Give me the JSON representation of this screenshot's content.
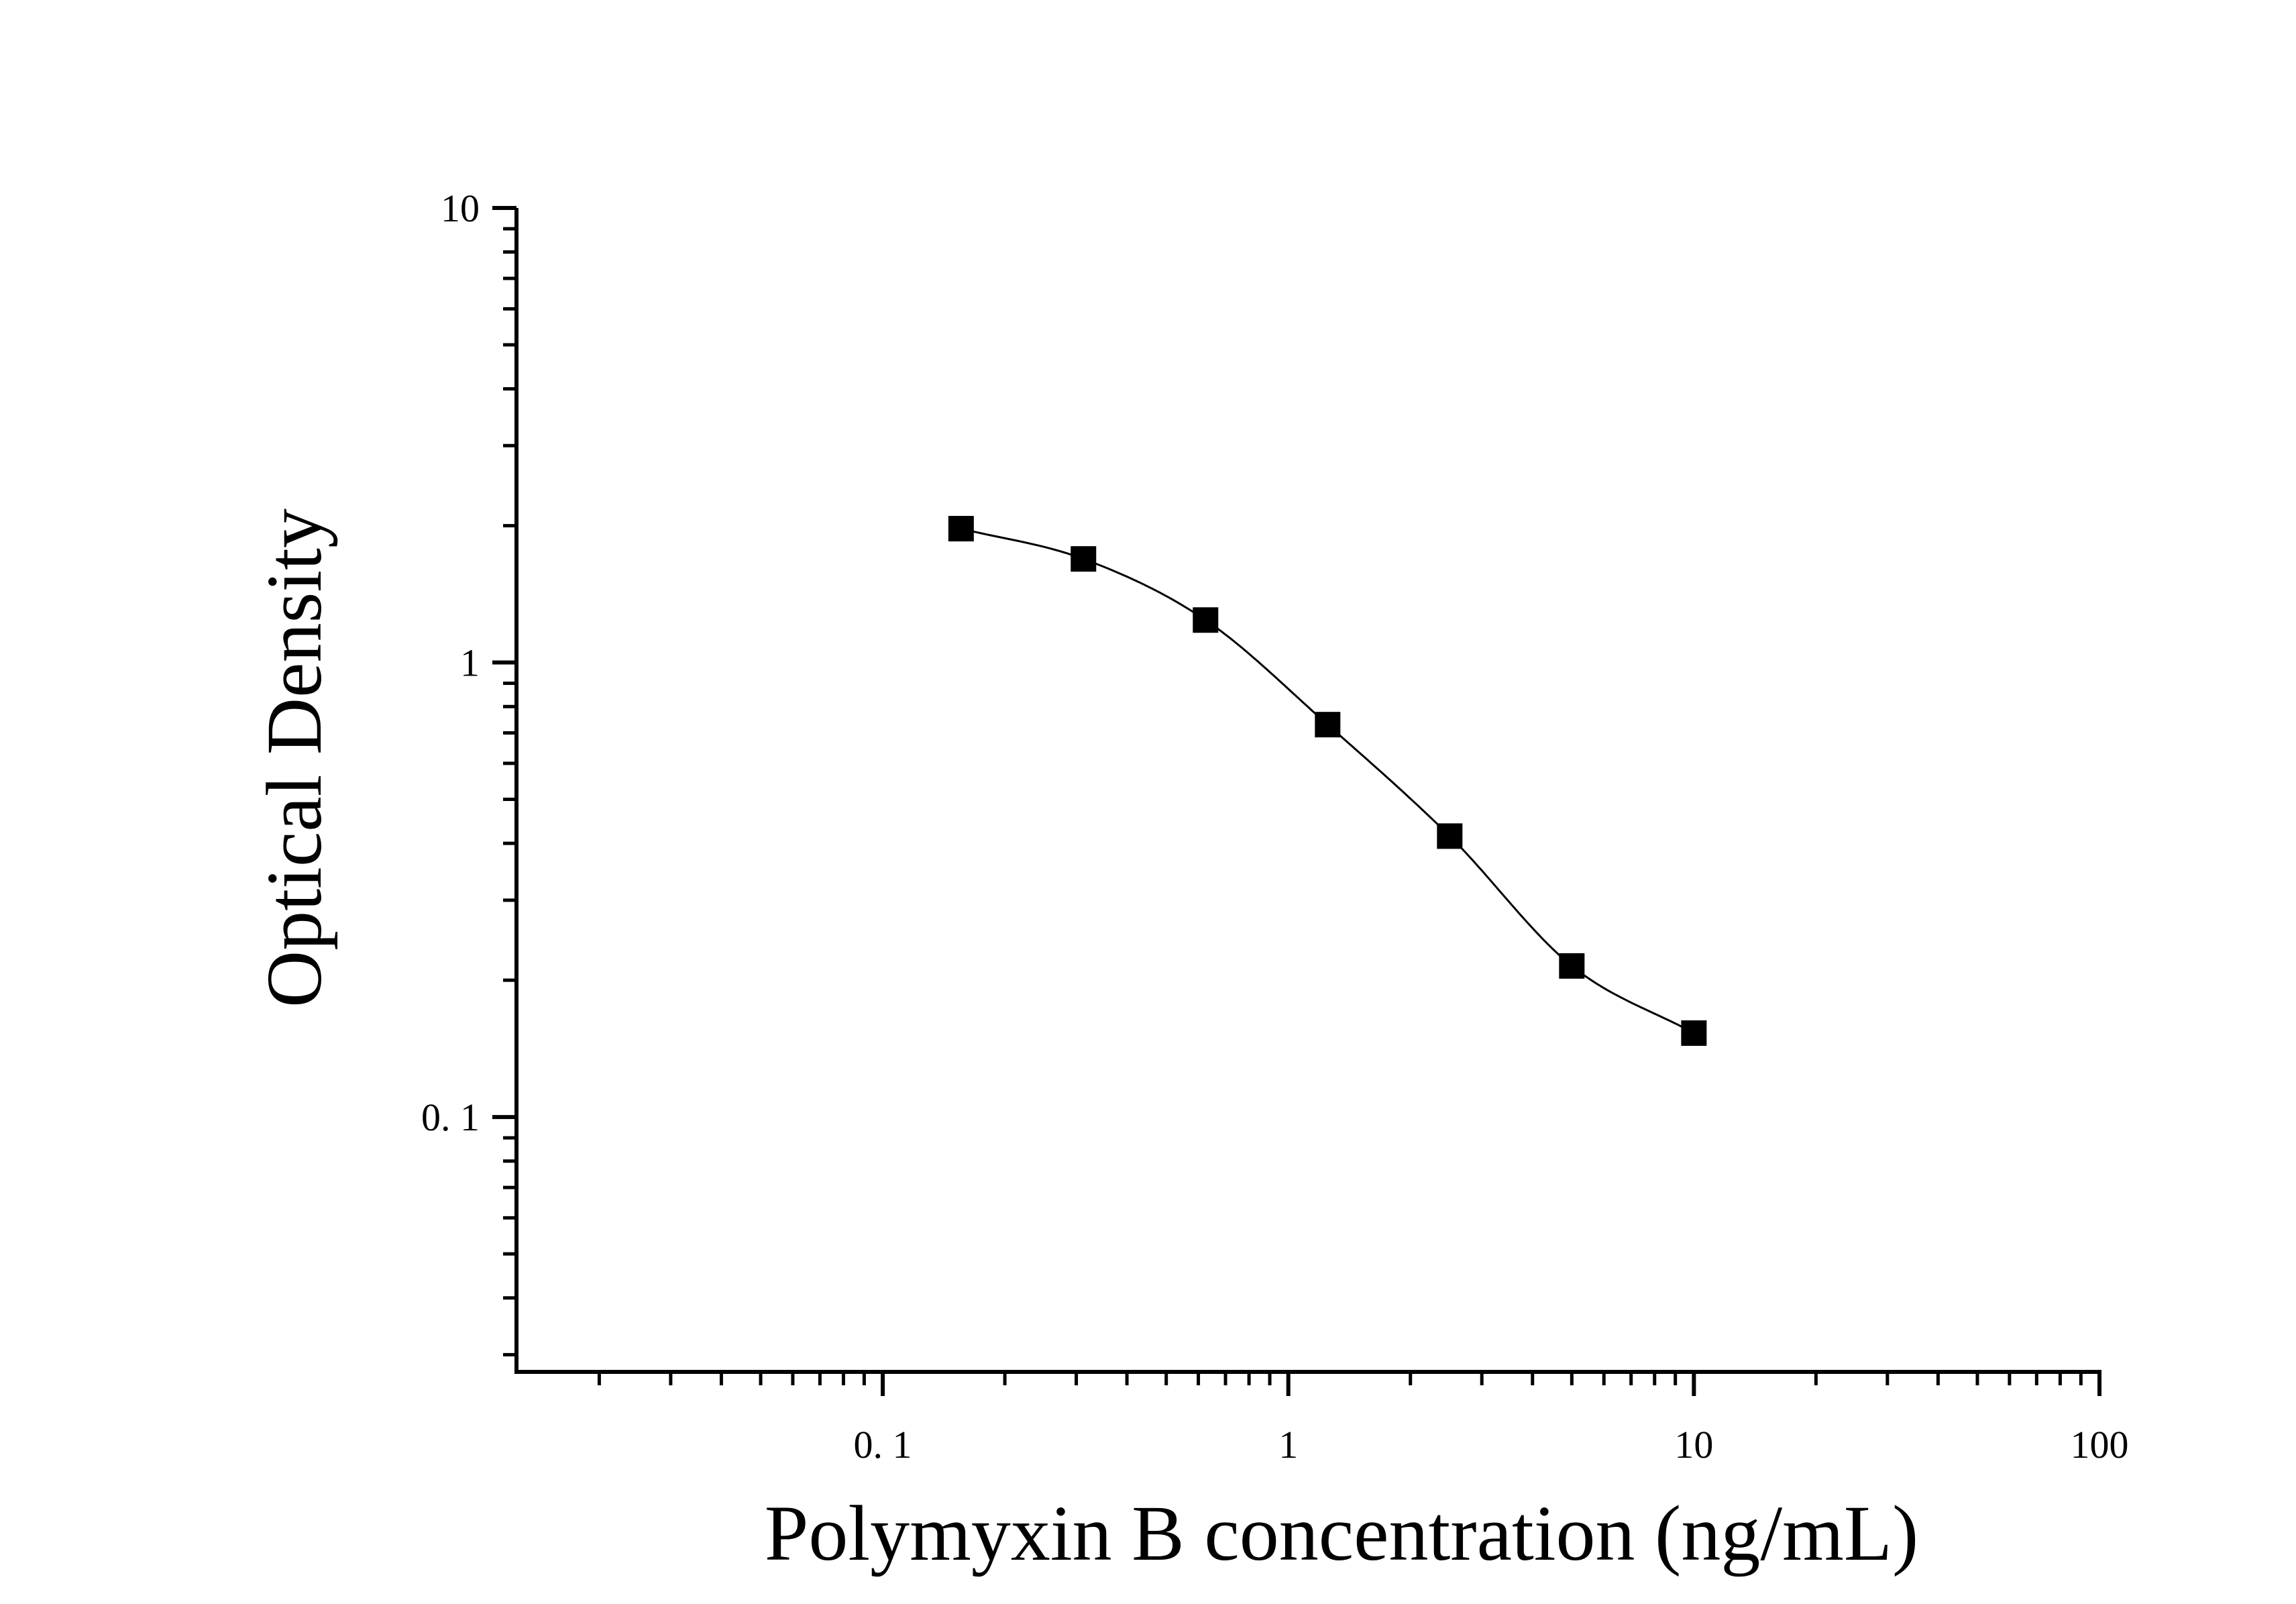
{
  "chart_data": {
    "type": "scatter",
    "title": "",
    "xlabel": "Polymyxin B concentration (ng/mL)",
    "ylabel": "Optical Density",
    "x_scale": "log",
    "y_scale": "log",
    "xlim": [
      0.0125,
      100
    ],
    "ylim": [
      0.0275,
      10
    ],
    "x_ticks": [
      {
        "value": 0.1,
        "label": "0. 1"
      },
      {
        "value": 1,
        "label": "1"
      },
      {
        "value": 10,
        "label": "10"
      },
      {
        "value": 100,
        "label": "100"
      }
    ],
    "y_ticks": [
      {
        "value": 0.1,
        "label": "0. 1"
      },
      {
        "value": 1,
        "label": "1"
      },
      {
        "value": 10,
        "label": "10"
      }
    ],
    "grid": false,
    "legend": "none",
    "series": [
      {
        "color": "#000000",
        "marker": "square",
        "fit_line": "4-parameter logistic curve",
        "x": [
          0.156,
          0.3125,
          0.625,
          1.25,
          2.5,
          5,
          10
        ],
        "y": [
          1.97,
          1.69,
          1.24,
          0.73,
          0.415,
          0.215,
          0.153
        ]
      }
    ]
  }
}
